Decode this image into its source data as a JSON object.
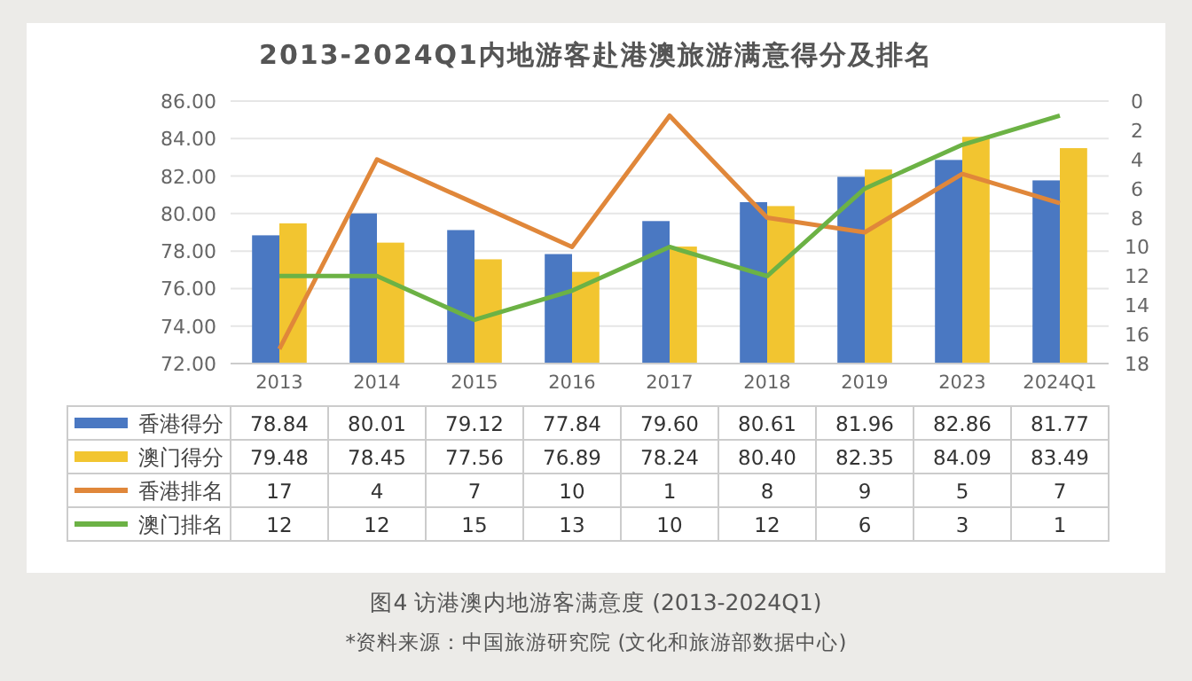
{
  "chart_data": {
    "type": "bar",
    "title": "2013-2024Q1内地游客赴港澳旅游满意得分及排名",
    "categories": [
      "2013",
      "2014",
      "2015",
      "2016",
      "2017",
      "2018",
      "2019",
      "2023",
      "2024Q1"
    ],
    "series": [
      {
        "name": "香港得分",
        "color": "#4a78c2",
        "values": [
          78.84,
          80.01,
          79.12,
          77.84,
          79.6,
          80.61,
          81.96,
          82.86,
          81.77
        ],
        "value_labels": [
          "78.84",
          "80.01",
          "79.12",
          "77.84",
          "79.60",
          "80.61",
          "81.96",
          "82.86",
          "81.77"
        ]
      },
      {
        "name": "澳门得分",
        "color": "#f2c530",
        "values": [
          79.48,
          78.45,
          77.56,
          76.89,
          78.24,
          80.4,
          82.35,
          84.09,
          83.49
        ],
        "value_labels": [
          "79.48",
          "78.45",
          "77.56",
          "76.89",
          "78.24",
          "80.40",
          "82.35",
          "84.09",
          "83.49"
        ]
      },
      {
        "name": "香港排名",
        "type": "line",
        "axis": "y2",
        "color": "#e0873a",
        "values": [
          17,
          4,
          7,
          10,
          1,
          8,
          9,
          5,
          7
        ]
      },
      {
        "name": "澳门排名",
        "type": "line",
        "axis": "y2",
        "color": "#6cb245",
        "values": [
          12,
          12,
          15,
          13,
          10,
          12,
          6,
          3,
          1
        ]
      }
    ],
    "ylim": [
      72,
      86
    ],
    "yticks": [
      {
        "value": 72,
        "label": "72.00"
      },
      {
        "value": 74,
        "label": "74.00"
      },
      {
        "value": 76,
        "label": "76.00"
      },
      {
        "value": 78,
        "label": "78.00"
      },
      {
        "value": 80,
        "label": "80.00"
      },
      {
        "value": 82,
        "label": "82.00"
      },
      {
        "value": 84,
        "label": "84.00"
      },
      {
        "value": 86,
        "label": "86.00"
      }
    ],
    "y2lim": [
      18,
      0
    ],
    "y2ticks": [
      0,
      2,
      4,
      6,
      8,
      10,
      12,
      14,
      16,
      18
    ],
    "grid": "y",
    "legend": "bottom",
    "data_labels": true,
    "marker": "none",
    "annotations": [
      "图4 访港澳内地游客满意度 (2013-2024Q1)",
      "*资料来源：中国旅游研究院 (文化和旅游部数据中心)"
    ]
  }
}
